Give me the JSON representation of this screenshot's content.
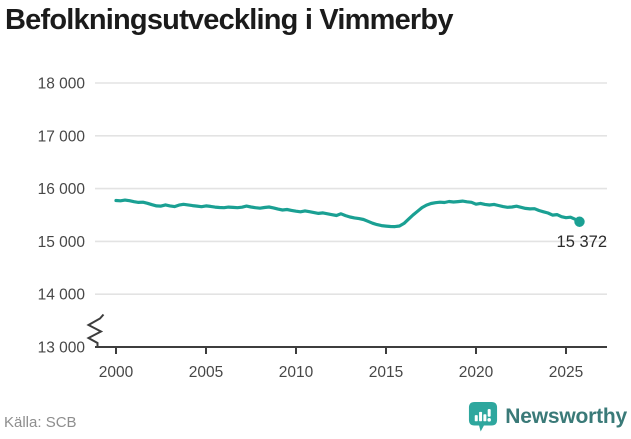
{
  "title": "Befolkningsutveckling i Vimmerby",
  "source": "Källa: SCB",
  "brand": {
    "name": "Newsworthy"
  },
  "colors": {
    "line": "#1aa093",
    "grid": "#e3e3e3",
    "axis": "#3d3d3d",
    "title_text": "#1b1b1b",
    "tick_label": "#474747",
    "source_text": "#8e8e8e",
    "brand_icon": "#2ea79e",
    "brand_text": "#3a7a78"
  },
  "chart_data": {
    "type": "line",
    "title": "Befolkningsutveckling i Vimmerby",
    "series_name": "Befolkning i Vimmerby",
    "x_unit": "year",
    "x_start": 2000,
    "x_step": 0.25,
    "x_end": 2025.75,
    "values": [
      15775,
      15768,
      15782,
      15770,
      15752,
      15738,
      15742,
      15722,
      15695,
      15672,
      15668,
      15692,
      15672,
      15660,
      15688,
      15703,
      15692,
      15678,
      15668,
      15658,
      15672,
      15662,
      15650,
      15642,
      15638,
      15650,
      15644,
      15638,
      15648,
      15668,
      15652,
      15638,
      15628,
      15642,
      15652,
      15635,
      15612,
      15595,
      15605,
      15588,
      15572,
      15560,
      15578,
      15562,
      15545,
      15530,
      15540,
      15522,
      15505,
      15490,
      15522,
      15488,
      15462,
      15445,
      15432,
      15415,
      15380,
      15345,
      15318,
      15300,
      15290,
      15283,
      15280,
      15292,
      15340,
      15420,
      15500,
      15570,
      15640,
      15688,
      15718,
      15733,
      15742,
      15736,
      15756,
      15747,
      15753,
      15764,
      15750,
      15740,
      15705,
      15720,
      15700,
      15690,
      15700,
      15680,
      15660,
      15645,
      15652,
      15666,
      15645,
      15625,
      15615,
      15620,
      15585,
      15560,
      15538,
      15498,
      15508,
      15468,
      15448,
      15458,
      15420,
      15372
    ],
    "end_value": 15372,
    "end_label": "15 372",
    "ylim": [
      13000,
      18000
    ],
    "yticks": [
      13000,
      14000,
      15000,
      16000,
      17000,
      18000
    ],
    "ytick_labels": [
      "13 000",
      "14 000",
      "15 000",
      "16 000",
      "17 000",
      "18 000"
    ],
    "xticks": [
      2000,
      2005,
      2010,
      2015,
      2020,
      2025
    ],
    "xtick_labels": [
      "2000",
      "2005",
      "2010",
      "2015",
      "2020",
      "2025"
    ],
    "grid": "horizontal",
    "legend": "none",
    "axis_break": true
  }
}
